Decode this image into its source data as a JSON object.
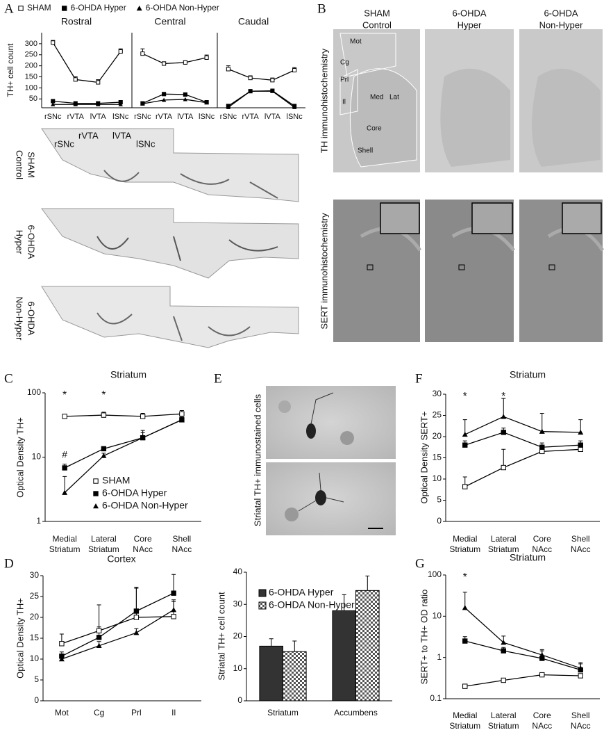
{
  "figure": {
    "panel_labels": [
      "A",
      "B",
      "C",
      "D",
      "E",
      "F",
      "G"
    ],
    "a_images": {
      "regions": [
        "rSNc",
        "rVTA",
        "lVTA",
        "lSNc"
      ],
      "rows": [
        [
          "SHAM",
          "Control"
        ],
        [
          "6-OHDA",
          "Hyper"
        ],
        [
          "6-OHDA",
          "Non-Hyper"
        ]
      ]
    },
    "b_images": {
      "columns": [
        [
          "SHAM",
          "Control"
        ],
        [
          "6-OHDA",
          "Hyper"
        ],
        [
          "6-OHDA",
          "Non-Hyper"
        ]
      ],
      "rows": [
        "TH immunohistochemistry",
        "SERT immunohistochemistry"
      ],
      "regions": [
        "Mot",
        "Cg",
        "Prl",
        "Il",
        "Med",
        "Lat",
        "Core",
        "Shell"
      ]
    },
    "e_images": {
      "label": "Striatal TH+ immunostained cells"
    }
  },
  "chart_data": [
    {
      "type": "line",
      "title": "Rostral",
      "y_label": "TH+ cell count",
      "legend": "above",
      "categories": [
        "rSNc",
        "rVTA",
        "lVTA",
        "lSNc"
      ],
      "ylim": [
        10,
        350
      ],
      "yticks": [
        50,
        100,
        150,
        200,
        250,
        300
      ],
      "series": [
        {
          "name": "SHAM",
          "color": "#000000",
          "marker": "open-square",
          "values": [
            305,
            138,
            125,
            265
          ],
          "errors": [
            10,
            12,
            12,
            12
          ]
        },
        {
          "name": "6-OHDA Hyper",
          "color": "#000000",
          "marker": "square",
          "values": [
            40,
            30,
            30,
            35
          ]
        },
        {
          "name": "6-OHDA Non-Hyper",
          "color": "#000000",
          "marker": "triangle",
          "values": [
            25,
            25,
            25,
            25
          ]
        }
      ]
    },
    {
      "type": "line",
      "title": "Central",
      "categories": [
        "rSNc",
        "rVTA",
        "lVTA",
        "lSNc"
      ],
      "ylim": [
        10,
        350
      ],
      "series": [
        {
          "name": "SHAM",
          "color": "#000000",
          "marker": "open-square",
          "values": [
            255,
            210,
            215,
            237
          ],
          "errors": [
            22,
            8,
            8,
            12
          ]
        },
        {
          "name": "6-OHDA Hyper",
          "color": "#000000",
          "marker": "square",
          "values": [
            30,
            72,
            70,
            35
          ]
        },
        {
          "name": "6-OHDA Non-Hyper",
          "color": "#000000",
          "marker": "triangle",
          "values": [
            28,
            45,
            48,
            33
          ]
        }
      ]
    },
    {
      "type": "line",
      "title": "Caudal",
      "categories": [
        "rSNc",
        "rVTA",
        "lVTA",
        "lSNc"
      ],
      "ylim": [
        10,
        350
      ],
      "series": [
        {
          "name": "SHAM",
          "color": "#000000",
          "marker": "open-square",
          "values": [
            185,
            145,
            135,
            180
          ],
          "errors": [
            15,
            10,
            10,
            12
          ]
        },
        {
          "name": "6-OHDA Hyper",
          "color": "#000000",
          "marker": "square",
          "values": [
            18,
            85,
            87,
            18
          ]
        },
        {
          "name": "6-OHDA Non-Hyper",
          "color": "#000000",
          "marker": "triangle",
          "values": [
            12,
            85,
            85,
            12
          ]
        }
      ]
    },
    {
      "type": "line",
      "title": "Striatum",
      "y_label": "Optical Density TH+",
      "legend": "lower left",
      "log_y": true,
      "categories": [
        [
          "Medial",
          "Striatum"
        ],
        [
          "Lateral",
          "Striatum"
        ],
        [
          "Core",
          "NAcc"
        ],
        [
          "Shell",
          "NAcc"
        ]
      ],
      "ylim": [
        1,
        100
      ],
      "yticks": [
        1,
        10,
        100
      ],
      "top_marks": [
        "*",
        "*",
        null,
        null
      ],
      "series_marks": [
        "#",
        null,
        null,
        null
      ],
      "series": [
        {
          "name": "SHAM",
          "color": "#000000",
          "marker": "open-square",
          "values": [
            43,
            45,
            43,
            47
          ],
          "errors": [
            3,
            5,
            5,
            6
          ]
        },
        {
          "name": "6-OHDA Hyper",
          "color": "#000000",
          "marker": "square",
          "values": [
            6.8,
            13.5,
            20,
            38
          ],
          "errors": [
            1,
            1,
            6,
            3
          ]
        },
        {
          "name": "6-OHDA Non-Hyper",
          "color": "#000000",
          "marker": "triangle",
          "values": [
            2.8,
            10.5,
            20,
            38
          ],
          "errors": [
            2.2,
            1,
            4,
            4
          ]
        }
      ]
    },
    {
      "type": "line",
      "title": "Cortex",
      "y_label": "Optical Density TH+",
      "categories": [
        "Mot",
        "Cg",
        "Prl",
        "Il"
      ],
      "ylim": [
        0,
        30
      ],
      "yticks": [
        0,
        5,
        10,
        15,
        20,
        25,
        30
      ],
      "series": [
        {
          "name": "SHAM",
          "color": "#000000",
          "marker": "open-square",
          "values": [
            13.7,
            16.8,
            20,
            20.2
          ],
          "errors": [
            2.3,
            6.2,
            7.2,
            4
          ]
        },
        {
          "name": "6-OHDA Hyper",
          "color": "#000000",
          "marker": "square",
          "values": [
            10.7,
            15.2,
            21.5,
            25.8
          ],
          "errors": [
            1,
            2.5,
            5.5,
            4.5
          ]
        },
        {
          "name": "6-OHDA Non-Hyper",
          "color": "#000000",
          "marker": "triangle",
          "values": [
            10,
            13.2,
            16.3,
            21.8
          ],
          "errors": [
            0.5,
            1,
            1,
            2
          ]
        }
      ]
    },
    {
      "type": "bar",
      "y_label": "Striatal TH+ cell count",
      "legend": "upper left",
      "categories": [
        "Striatum",
        "Accumbens"
      ],
      "ylim": [
        0,
        40
      ],
      "yticks": [
        0,
        10,
        20,
        30,
        40
      ],
      "series": [
        {
          "name": "6-OHDA Hyper",
          "color": "#333333",
          "values": [
            17,
            28
          ],
          "errors": [
            2.3,
            5
          ]
        },
        {
          "name": "6-OHDA Non-Hyper",
          "color": "#333333",
          "pattern": "checker",
          "values": [
            15.3,
            34.3
          ],
          "errors": [
            3.3,
            4.5
          ]
        }
      ]
    },
    {
      "type": "line",
      "title": "Striatum",
      "y_label": "Optical Density SERT+",
      "categories": [
        [
          "Medial",
          "Striatum"
        ],
        [
          "Lateral",
          "Striatum"
        ],
        [
          "Core",
          "NAcc"
        ],
        [
          "Shell",
          "NAcc"
        ]
      ],
      "ylim": [
        0,
        30
      ],
      "yticks": [
        0,
        5,
        10,
        15,
        20,
        25,
        30
      ],
      "top_marks": [
        "*",
        "*",
        null,
        null
      ],
      "series": [
        {
          "name": "SHAM",
          "color": "#000000",
          "marker": "open-square",
          "values": [
            8.2,
            12.7,
            16.5,
            17
          ],
          "errors": [
            2.3,
            4.3,
            0.5,
            0.5
          ]
        },
        {
          "name": "6-OHDA Hyper",
          "color": "#000000",
          "marker": "square",
          "values": [
            18,
            21,
            17.5,
            18
          ],
          "errors": [
            1,
            1,
            1,
            1
          ]
        },
        {
          "name": "6-OHDA Non-Hyper",
          "color": "#000000",
          "marker": "triangle",
          "values": [
            20.5,
            24.7,
            21.2,
            21
          ],
          "errors": [
            3.5,
            4.3,
            4.3,
            3
          ]
        }
      ]
    },
    {
      "type": "line",
      "title": "Striatum",
      "y_label": "SERT+ to TH+ OD ratio",
      "log_y": true,
      "categories": [
        [
          "Medial",
          "Striatum"
        ],
        [
          "Lateral",
          "Striatum"
        ],
        [
          "Core",
          "NAcc"
        ],
        [
          "Shell",
          "NAcc"
        ]
      ],
      "ylim": [
        0.1,
        100
      ],
      "yticks": [
        0.1,
        1,
        10,
        100
      ],
      "top_marks": [
        "*",
        null,
        null,
        null
      ],
      "series": [
        {
          "name": "SHAM",
          "color": "#000000",
          "marker": "open-square",
          "values": [
            0.2,
            0.28,
            0.38,
            0.36
          ],
          "errors": [
            0.02,
            0.03,
            0.02,
            0.02
          ]
        },
        {
          "name": "6-OHDA Hyper",
          "color": "#000000",
          "marker": "square",
          "values": [
            2.5,
            1.45,
            0.95,
            0.5
          ],
          "errors": [
            0.7,
            0.3,
            0.5,
            0.2
          ]
        },
        {
          "name": "6-OHDA Non-Hyper",
          "color": "#000000",
          "marker": "triangle",
          "values": [
            16,
            2.3,
            1.15,
            0.55
          ],
          "errors": [
            22,
            1,
            0.4,
            0.2
          ]
        }
      ]
    }
  ]
}
